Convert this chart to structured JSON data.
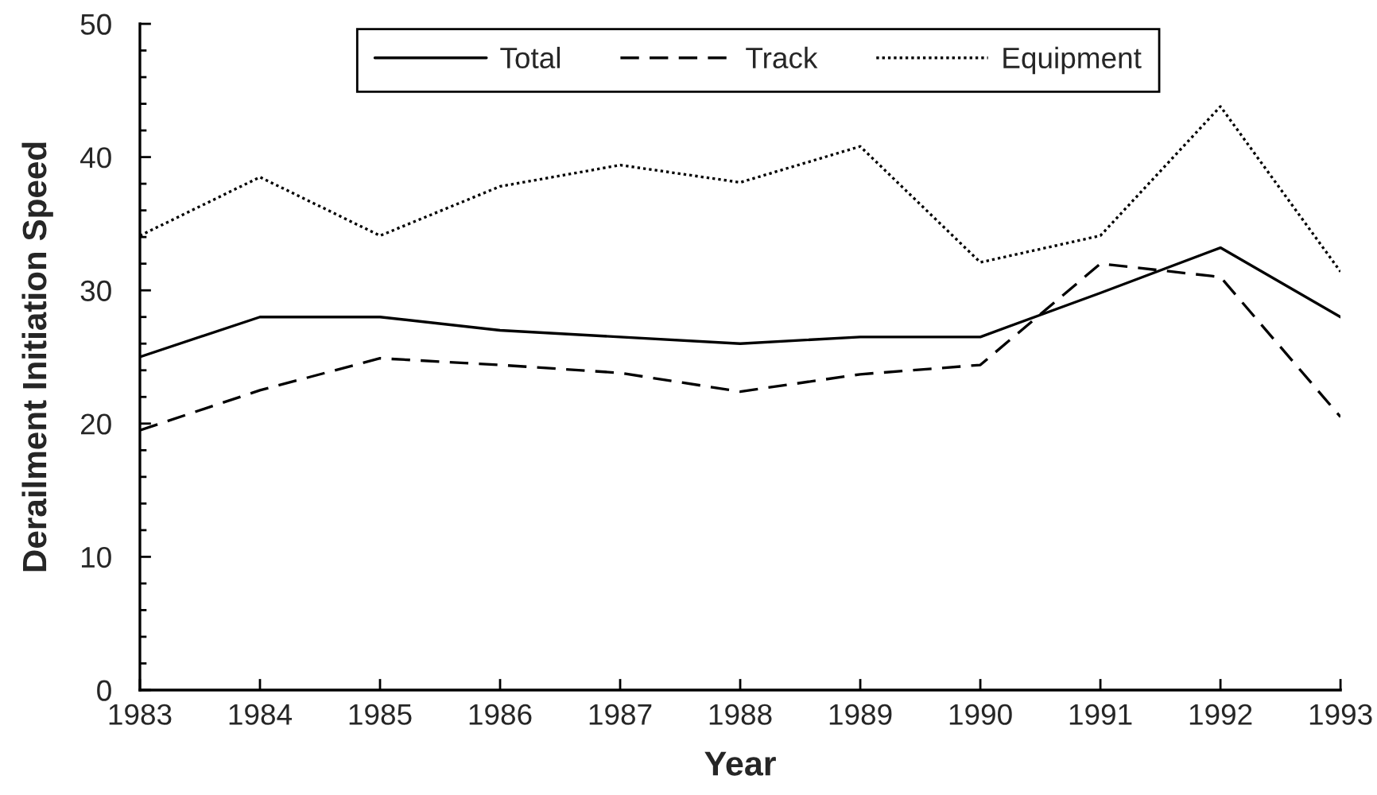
{
  "chart_data": {
    "type": "line",
    "xlabel": "Year",
    "ylabel": "Derailment Initiation Speed",
    "x": [
      1983,
      1984,
      1985,
      1986,
      1987,
      1988,
      1989,
      1990,
      1991,
      1992,
      1993
    ],
    "series": [
      {
        "name": "Total",
        "color": "#000000",
        "line_style": "solid",
        "values": [
          25.0,
          28.0,
          28.0,
          27.0,
          26.5,
          26.0,
          26.5,
          26.5,
          29.8,
          33.2,
          28.0
        ]
      },
      {
        "name": "Track",
        "color": "#000000",
        "line_style": "dashed",
        "values": [
          19.5,
          22.5,
          24.9,
          24.4,
          23.8,
          22.4,
          23.7,
          24.4,
          32.0,
          31.0,
          20.5
        ]
      },
      {
        "name": "Equipment",
        "color": "#000000",
        "line_style": "dotted",
        "values": [
          34.1,
          38.5,
          34.1,
          37.8,
          39.4,
          38.1,
          40.8,
          32.1,
          34.1,
          43.8,
          31.4
        ]
      }
    ],
    "xlim": [
      1983,
      1993
    ],
    "xticks": [
      1983,
      1984,
      1985,
      1986,
      1987,
      1988,
      1989,
      1990,
      1991,
      1992,
      1993
    ],
    "ylim": [
      0,
      50
    ],
    "yticks": [
      0,
      10,
      20,
      30,
      40,
      50
    ],
    "grid": false,
    "legend": "top",
    "marker": "none"
  }
}
